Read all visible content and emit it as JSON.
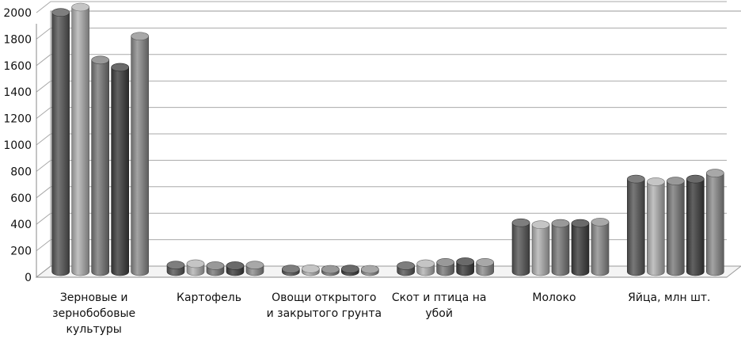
{
  "chart_data": {
    "type": "bar",
    "title": "",
    "xlabel": "",
    "ylabel": "",
    "ylim": [
      0,
      2000
    ],
    "yticks": [
      0,
      200,
      400,
      600,
      800,
      1000,
      1200,
      1400,
      1600,
      1800,
      2000
    ],
    "grid": true,
    "legend": "none",
    "categories": [
      [
        "Зерновые и",
        "зернобобовые",
        "культуры"
      ],
      [
        "Картофель"
      ],
      [
        "Овощи открытого",
        "и закрытого грунта"
      ],
      [
        "Скот и птица на",
        "убой"
      ],
      [
        "Молоко"
      ],
      [
        "Яйца, млн шт."
      ]
    ],
    "series_colors": [
      "#5a5a5a",
      "#b5b5b5",
      "#7c7c7c",
      "#404040",
      "#8f8f8f"
    ],
    "series": [
      {
        "values": [
          1960,
          50,
          20,
          45,
          370,
          700
        ]
      },
      {
        "values": [
          2000,
          60,
          22,
          60,
          355,
          680
        ]
      },
      {
        "values": [
          1600,
          45,
          18,
          70,
          365,
          685
        ]
      },
      {
        "values": [
          1545,
          45,
          20,
          75,
          365,
          700
        ]
      },
      {
        "values": [
          1780,
          50,
          18,
          70,
          375,
          745
        ]
      }
    ]
  }
}
